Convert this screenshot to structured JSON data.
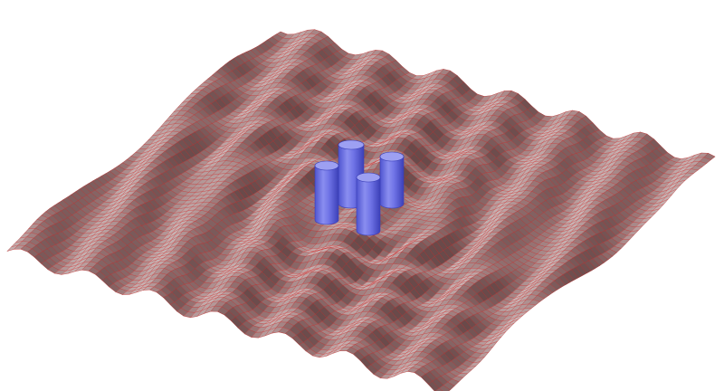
{
  "scene": {
    "subject": "wave-surface-with-cylinder-cluster",
    "surface": {
      "base_color": "#9a7676",
      "highlight_color": "#c8b4b4",
      "shadow_color": "#6a4a4a",
      "mesh_line_color": "#d12a2a"
    },
    "cylinders": {
      "count": 4,
      "color": "#6f73e6",
      "top_color": "#9da0f2",
      "edge_color": "#3a3fb8"
    },
    "background_color": "#ffffff"
  }
}
